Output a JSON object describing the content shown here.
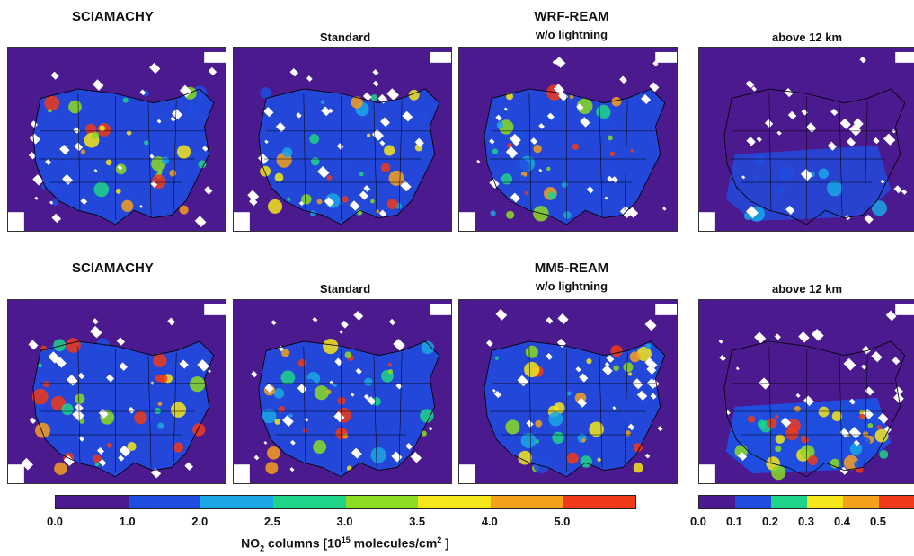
{
  "row1": {
    "left_title": "SCIAMACHY",
    "model_title": "WRF-REAM",
    "sub1": "Standard",
    "sub2": "w/o lightning",
    "sub3": "above 12 km"
  },
  "row2": {
    "left_title": "SCIAMACHY",
    "model_title": "MM5-REAM",
    "sub1": "Standard",
    "sub2": "w/o lightning",
    "sub3": "above 12 km"
  },
  "colorbar_main": {
    "colors": [
      "#4b1a8f",
      "#1f4de0",
      "#1aa6e6",
      "#1fd389",
      "#8bdc22",
      "#f4e61a",
      "#f5a01c",
      "#f03a1a"
    ],
    "ticks": [
      "0.0",
      "1.0",
      "2.0",
      "2.5",
      "3.0",
      "3.5",
      "4.0",
      "5.0"
    ]
  },
  "colorbar_small": {
    "colors": [
      "#4b1a8f",
      "#1f4de0",
      "#1fd389",
      "#f4e61a",
      "#f5a01c",
      "#f03a1a"
    ],
    "ticks": [
      "0.0",
      "0.1",
      "0.2",
      "0.3",
      "0.4",
      "0.5"
    ]
  },
  "axis_label": {
    "pre": "NO",
    "sub": "2",
    "mid": " columns [10",
    "sup1": "15",
    "mid2": " molecules/cm",
    "sup2": "2",
    "post": " ]"
  }
}
